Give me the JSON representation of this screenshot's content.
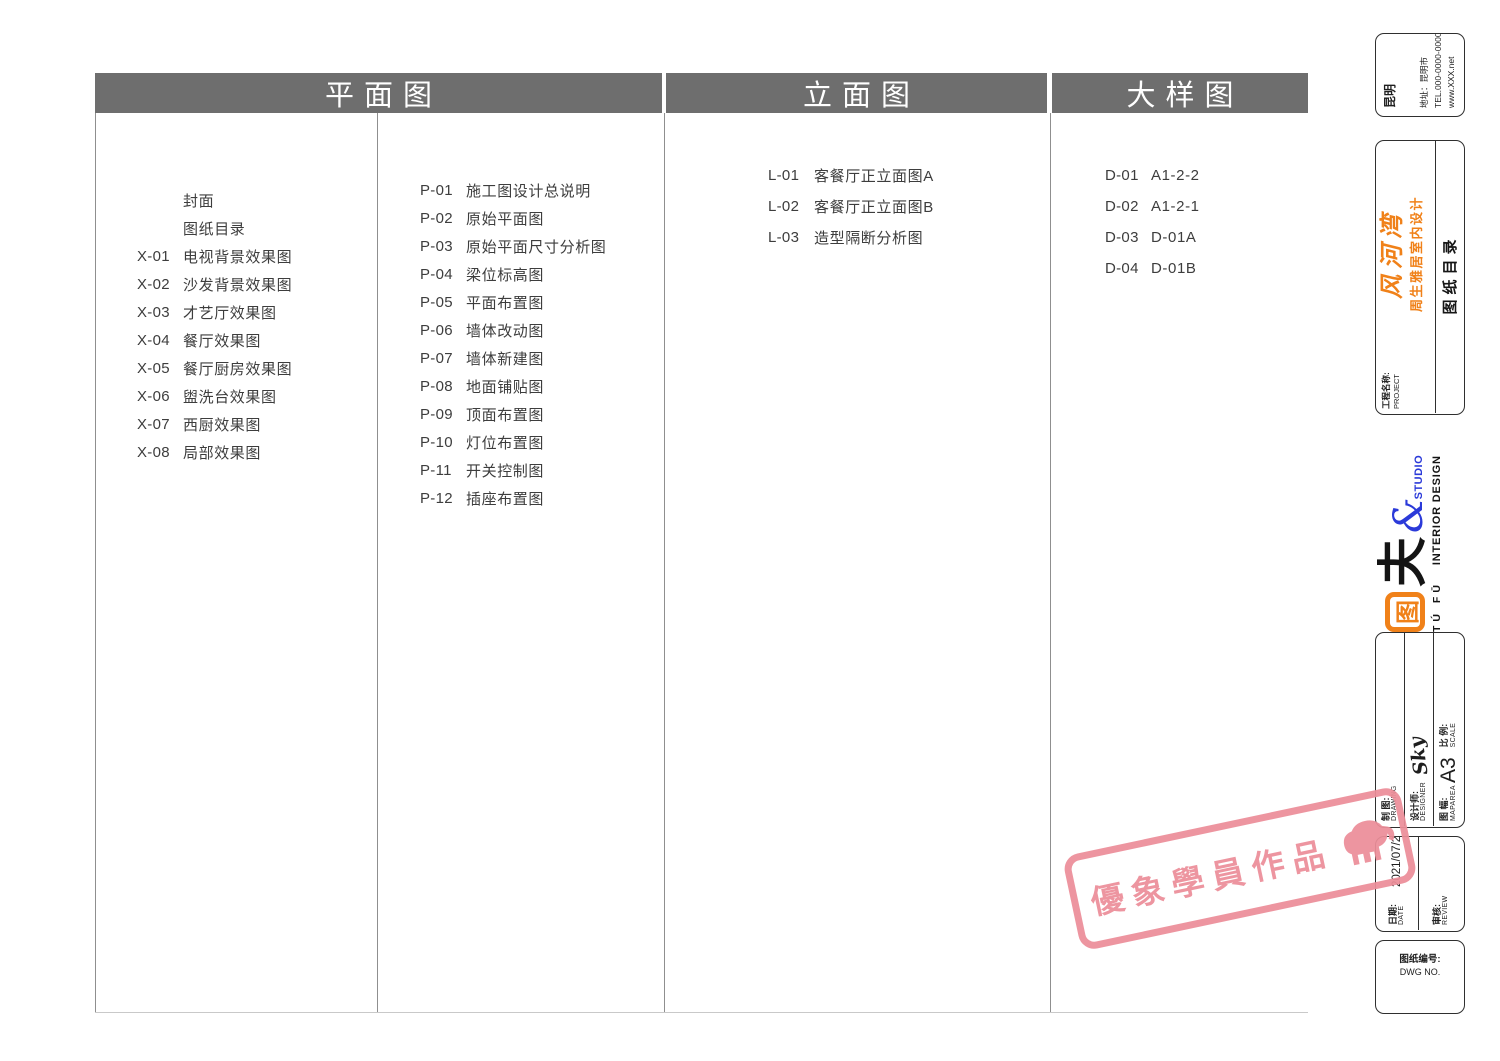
{
  "sheet": {
    "columns": [
      {
        "title": "平面图"
      },
      {
        "title": "立面图"
      },
      {
        "title": "大样图"
      }
    ]
  },
  "lists": {
    "covers": {
      "items": [
        {
          "code": "",
          "name": "封面"
        },
        {
          "code": "",
          "name": "图纸目录"
        },
        {
          "code": "X-01",
          "name": "电视背景效果图"
        },
        {
          "code": "X-02",
          "name": "沙发背景效果图"
        },
        {
          "code": "X-03",
          "name": "才艺厅效果图"
        },
        {
          "code": "X-04",
          "name": "餐厅效果图"
        },
        {
          "code": "X-05",
          "name": "餐厅厨房效果图"
        },
        {
          "code": "X-06",
          "name": "盥洗台效果图"
        },
        {
          "code": "X-07",
          "name": "西厨效果图"
        },
        {
          "code": "X-08",
          "name": "局部效果图"
        }
      ]
    },
    "plans": {
      "items": [
        {
          "code": "P-01",
          "name": "施工图设计总说明"
        },
        {
          "code": "P-02",
          "name": "原始平面图"
        },
        {
          "code": "P-03",
          "name": "原始平面尺寸分析图"
        },
        {
          "code": "P-04",
          "name": "梁位标高图"
        },
        {
          "code": "P-05",
          "name": "平面布置图"
        },
        {
          "code": "P-06",
          "name": "墙体改动图"
        },
        {
          "code": "P-07",
          "name": "墙体新建图"
        },
        {
          "code": "P-08",
          "name": "地面铺贴图"
        },
        {
          "code": "P-09",
          "name": "顶面布置图"
        },
        {
          "code": "P-10",
          "name": "灯位布置图"
        },
        {
          "code": "P-11",
          "name": "开关控制图"
        },
        {
          "code": "P-12",
          "name": "插座布置图"
        }
      ]
    },
    "elevations": {
      "items": [
        {
          "code": "L-01",
          "name": "客餐厅正立面图A"
        },
        {
          "code": "L-02",
          "name": "客餐厅正立面图B"
        },
        {
          "code": "L-03",
          "name": "造型隔断分析图"
        }
      ]
    },
    "details": {
      "items": [
        {
          "code": "D-01",
          "name": "A1-2-2"
        },
        {
          "code": "D-02",
          "name": "A1-2-1"
        },
        {
          "code": "D-03",
          "name": "D-01A"
        },
        {
          "code": "D-04",
          "name": "D-01B"
        }
      ]
    }
  },
  "title_block": {
    "company": {
      "city": "昆明",
      "address": "地址：昆明市",
      "tel": "TEL.000-0000-0000",
      "web": "www.XXX.net"
    },
    "project": {
      "label_cn": "工程名称:",
      "label_en": "PROJECT",
      "brand": "风河湾",
      "name": "周生雅居室内设计",
      "sheet_title": "图纸目录"
    },
    "logo": {
      "square_glyph": "图",
      "big_glyph": "夫",
      "ampersand": "&",
      "studio": "STUDIO",
      "pinyin": "TÚ FŪ",
      "subtitle": "INTERIOR DESIGN"
    },
    "fields": [
      {
        "label_cn": "制 图:",
        "label_en": "DRAWING",
        "value": ""
      },
      {
        "label_cn": "设计师:",
        "label_en": "DESIGNER",
        "value": "Sky"
      },
      {
        "label_cn": "图 幅:",
        "label_en": "MAPAREA",
        "value": "A3"
      },
      {
        "label_cn": "比 例:",
        "label_en": "SCALE",
        "value": ""
      },
      {
        "label_cn": "日期:",
        "label_en": "DATE",
        "value": "2021/07/27"
      },
      {
        "label_cn": "审核:",
        "label_en": "REVIEW",
        "value": ""
      },
      {
        "label_cn": "图纸编号:",
        "label_en": "DWG NO.",
        "value": ""
      }
    ]
  },
  "stamp": {
    "text": "優象學員作品",
    "icon": "elephant-icon",
    "color": "#ec8e99"
  },
  "colors": {
    "header_bg": "#6e6e6e",
    "header_text": "#ffffff",
    "table_line": "#8f8f8f",
    "text": "#3d3d3d",
    "accent_orange": "#f08119",
    "accent_blue": "#2b3ad9",
    "stamp_pink": "#ec8e99"
  }
}
